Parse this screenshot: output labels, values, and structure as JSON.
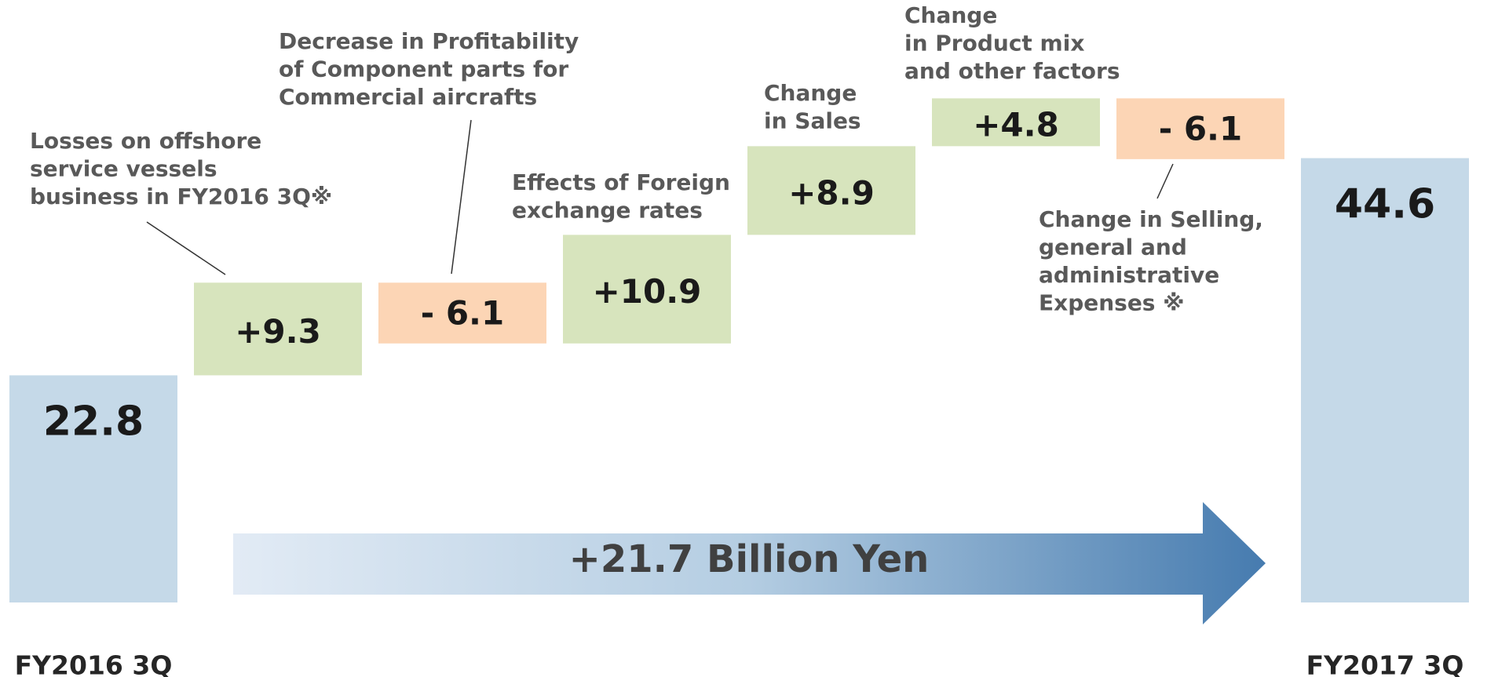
{
  "chart_data": {
    "type": "waterfall",
    "categories": [
      "FY2016 3Q",
      null,
      null,
      null,
      null,
      null,
      null,
      "FY2017 3Q"
    ],
    "measures": [
      "absolute",
      "relative",
      "relative",
      "relative",
      "relative",
      "relative",
      "relative",
      "absolute"
    ],
    "values": [
      22.8,
      9.3,
      -6.1,
      10.9,
      8.9,
      4.8,
      -6.1,
      44.6
    ],
    "value_labels": [
      "22.8",
      "+9.3",
      "- 6.1",
      "+10.9",
      "+8.9",
      "+4.8",
      "- 6.1",
      "44.6"
    ],
    "annotations": [
      null,
      [
        "Losses on offshore",
        "service vessels",
        "business in FY2016 3Q※"
      ],
      [
        "Decrease in Profitability",
        "of Component parts for",
        "Commercial aircrafts"
      ],
      [
        "Effects of Foreign",
        "exchange rates"
      ],
      [
        "Change",
        "in Sales"
      ],
      [
        "Change",
        "in Product mix",
        "and other factors"
      ],
      [
        "Change in Selling,",
        "general and",
        "administrative",
        "Expenses ※"
      ],
      null
    ],
    "total_change_label": "+21.7 Billion Yen",
    "colors": {
      "total": "#c5d9e8",
      "increase": "#d7e4bd",
      "decrease": "#fcd5b5"
    }
  }
}
